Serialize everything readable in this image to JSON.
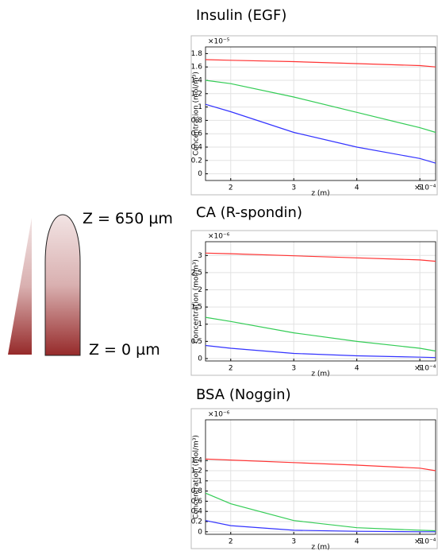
{
  "chart_data": [
    {
      "type": "line",
      "title": "Insulin (EGF)",
      "x_label": "z (m)",
      "y_label": "Concentration (mol/m³)",
      "x_multiplier": "×10⁻⁴",
      "y_multiplier": "×10⁻⁵",
      "x": [
        1.6,
        2,
        3,
        4,
        5,
        5.25
      ],
      "xlim": [
        1.6,
        5.25
      ],
      "xticks": [
        2,
        3,
        4,
        5
      ],
      "ylim": [
        -0.1,
        1.9
      ],
      "yticks": [
        0,
        0.2,
        0.4,
        0.6,
        0.8,
        1,
        1.2,
        1.4,
        1.6,
        1.8
      ],
      "grid": true,
      "series": [
        {
          "color": "#ff3333",
          "values": [
            1.71,
            1.7,
            1.68,
            1.65,
            1.62,
            1.6
          ]
        },
        {
          "color": "#33cc55",
          "values": [
            1.4,
            1.35,
            1.15,
            0.92,
            0.69,
            0.62
          ]
        },
        {
          "color": "#3333ff",
          "values": [
            1.04,
            0.93,
            0.62,
            0.4,
            0.23,
            0.16
          ]
        }
      ]
    },
    {
      "type": "line",
      "title": "CA (R-spondin)",
      "x_label": "z (m)",
      "y_label": "Concentration (mol/m³)",
      "x_multiplier": "×10⁻⁴",
      "y_multiplier": "×10⁻⁶",
      "x": [
        1.6,
        2,
        3,
        4,
        5,
        5.25
      ],
      "xlim": [
        1.6,
        5.25
      ],
      "xticks": [
        2,
        3,
        4,
        5
      ],
      "ylim": [
        -0.07,
        3.4
      ],
      "yticks": [
        0,
        0.5,
        1,
        1.5,
        2,
        2.5,
        3
      ],
      "grid": true,
      "series": [
        {
          "color": "#ff3333",
          "values": [
            3.07,
            3.05,
            2.99,
            2.93,
            2.87,
            2.83
          ]
        },
        {
          "color": "#33cc55",
          "values": [
            1.2,
            1.08,
            0.75,
            0.5,
            0.3,
            0.22
          ]
        },
        {
          "color": "#3333ff",
          "values": [
            0.38,
            0.3,
            0.15,
            0.08,
            0.04,
            0.03
          ]
        }
      ]
    },
    {
      "type": "line",
      "title": "BSA (Noggin)",
      "x_label": "z (m)",
      "y_label": "Concentration (mol/m³)",
      "x_multiplier": "×10⁻⁴",
      "y_multiplier": "×10⁻⁶",
      "x": [
        1.6,
        2,
        3,
        4,
        5,
        5.25
      ],
      "xlim": [
        1.6,
        5.25
      ],
      "xticks": [
        2,
        3,
        4,
        5
      ],
      "ylim": [
        -0.05,
        2.2
      ],
      "yticks": [
        0,
        0.2,
        0.4,
        0.6,
        0.8,
        1,
        1.2,
        1.4
      ],
      "grid": true,
      "series": [
        {
          "color": "#ff3333",
          "values": [
            1.43,
            1.41,
            1.36,
            1.31,
            1.25,
            1.2
          ]
        },
        {
          "color": "#33cc55",
          "values": [
            0.76,
            0.55,
            0.22,
            0.08,
            0.03,
            0.02
          ]
        },
        {
          "color": "#3333ff",
          "values": [
            0.22,
            0.12,
            0.03,
            0.01,
            0,
            0
          ]
        }
      ]
    }
  ],
  "diagram": {
    "top_label": "Z = 650 µm",
    "bottom_label": "Z = 0 µm"
  }
}
